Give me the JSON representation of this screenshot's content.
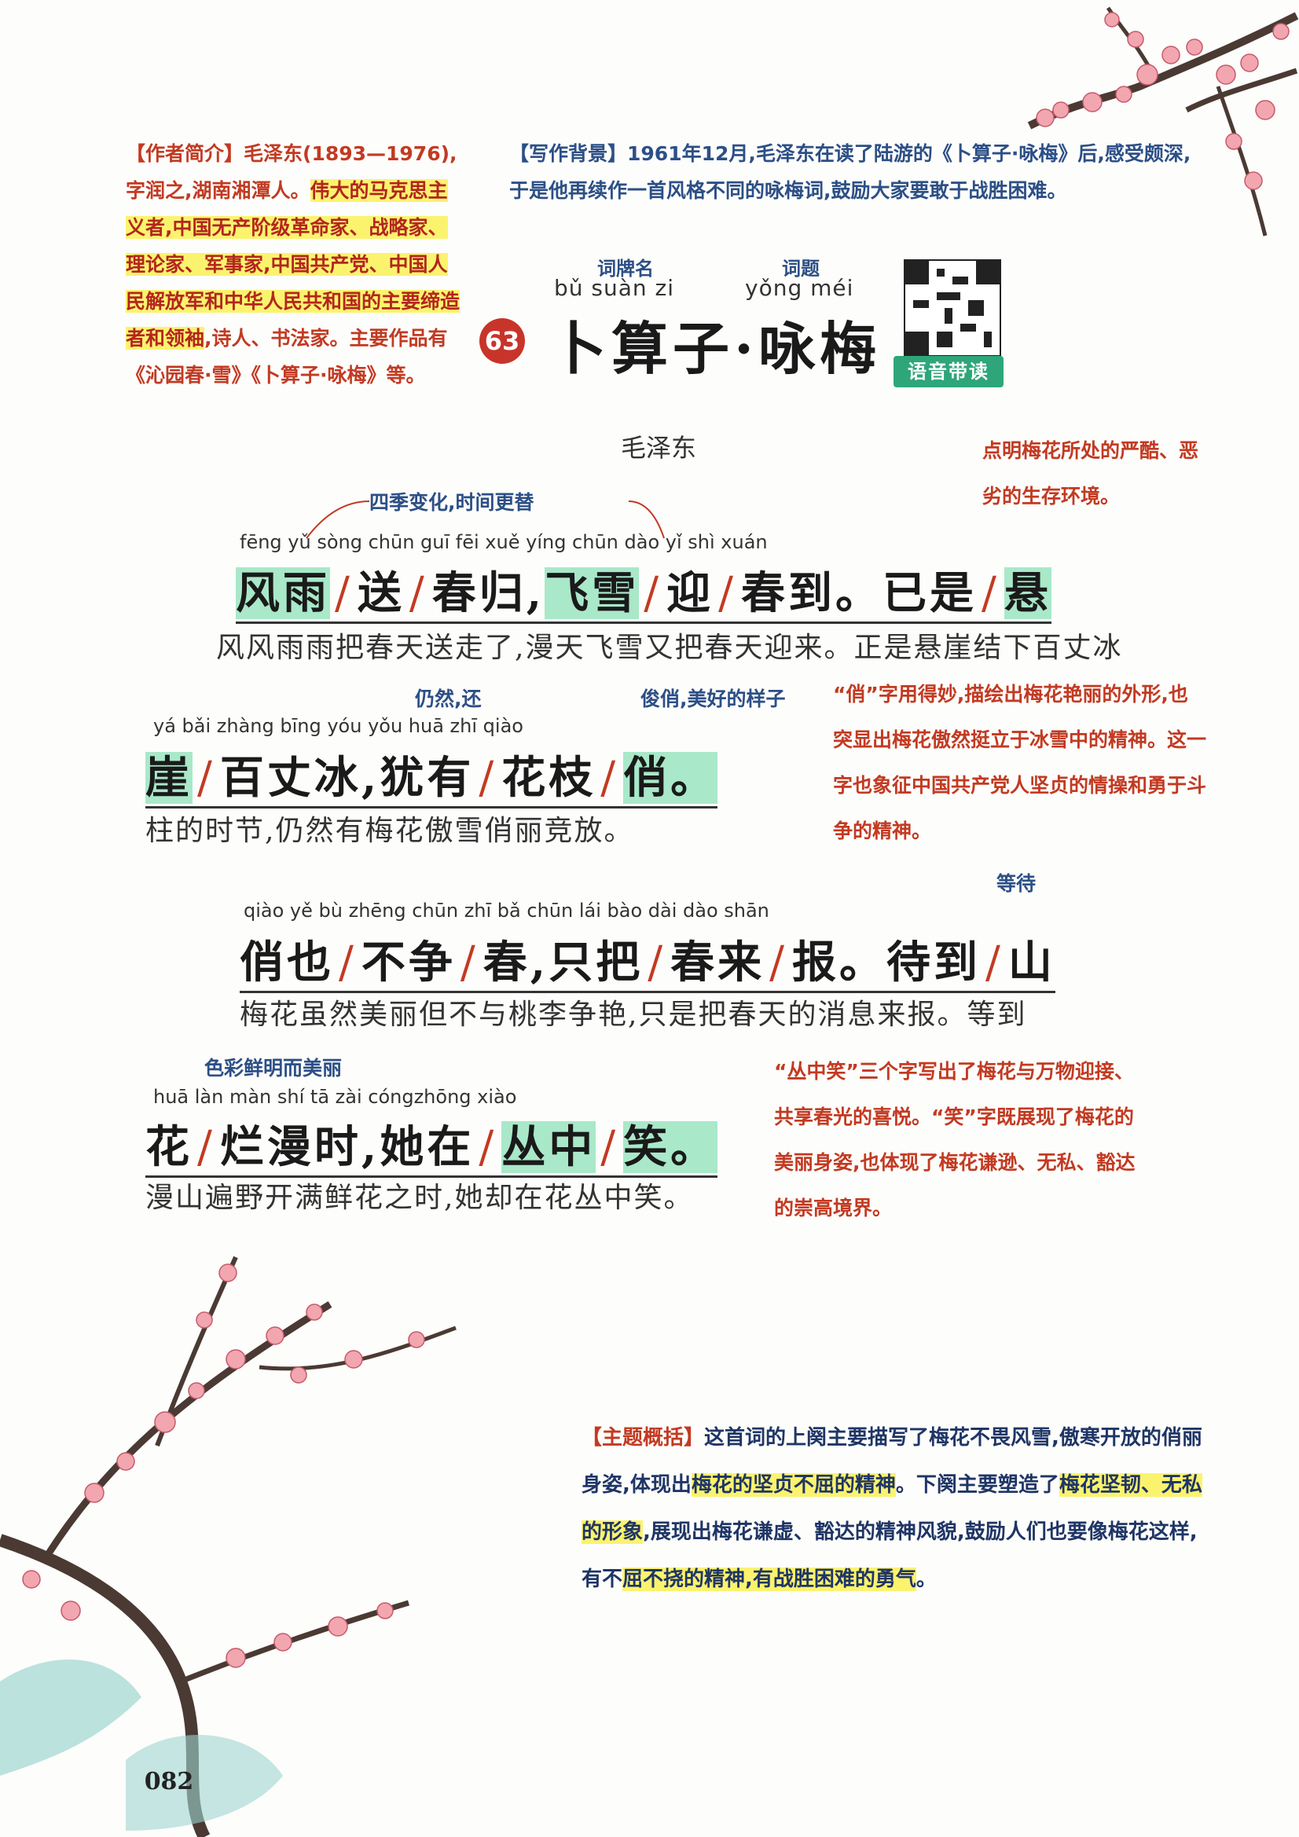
{
  "author_intro": {
    "tag": "【作者简介】",
    "text1": "毛泽东(1893—1976),字润之,湖南湘潭人。",
    "highlight": "伟大的马克思主义者,中国无产阶级革命家、战略家、理论家、军事家,中国共产党、中国人民解放军和中华人民共和国的主要缔造者和领袖",
    "text2": ",诗人、书法家。主要作品有《沁园春·雪》《卜算子·咏梅》等。"
  },
  "background": {
    "tag": "【写作背景】",
    "text": "1961年12月,毛泽东在读了陆游的《卜算子·咏梅》后,感受颇深,于是他再续作一首风格不同的咏梅词,鼓励大家要敢于战胜困难。"
  },
  "title": {
    "label_ci_pai": "词牌名",
    "label_ci_ti": "词题",
    "pinyin_left": "bǔ suàn zi",
    "pinyin_right": "yǒng méi",
    "number": "63",
    "text": "卜算子·咏梅",
    "audio_label": "语音带读"
  },
  "poet": "毛泽东",
  "notes": {
    "n1": "四季变化,时间更替",
    "n2": "点明梅花所处的严酷、恶劣的生存环境。",
    "n3": "仍然,还",
    "n4": "俊俏,美好的样子",
    "n5": "“俏”字用得妙,描绘出梅花艳丽的外形,也突显出梅花傲然挺立于冰雪中的精神。这一字也象征中国共产党人坚贞的情操和勇于斗争的精神。",
    "n6": "等待",
    "n7": "色彩鲜明而美丽",
    "n8": "“丛中笑”三个字写出了梅花与万物迎接、共享春光的喜悦。“笑”字既展现了梅花的美丽身姿,也体现了梅花谦逊、无私、豁达的崇高境界。"
  },
  "lines": [
    {
      "pinyin": "fēng  yǔ        sòng   chūn  guī          fēi   xuě        yíng     chūn  dào              yǐ    shì     xuán",
      "text": [
        "风雨",
        "送",
        "春归,",
        "飞雪",
        "迎",
        "春到。",
        "已是",
        "悬"
      ],
      "translation": "风风雨雨把春天送走了,漫天飞雪又把春天迎来。正是悬崖结下百丈冰"
    },
    {
      "pinyin": "yá        bǎi zhàng bīng       yóu  yǒu        huā  zhī        qiào",
      "text": [
        "崖",
        "百丈冰,",
        "犹有",
        "花枝",
        "俏。"
      ],
      "translation": "柱的时节,仍然有梅花傲雪俏丽竞放。"
    },
    {
      "pinyin": "qiào  yě          bù zhēng      chūn          zhī   bǎ          chūn  lái         bào            dài   dào          shān",
      "text": [
        "俏也",
        "不争",
        "春,",
        "只把",
        "春来",
        "报。",
        "待到",
        "山"
      ],
      "translation": "梅花虽然美丽但不与桃李争艳,只是把春天的消息来报。等到"
    },
    {
      "pinyin": "huā      làn màn  shí          tā   zài          cóngzhōng    xiào",
      "text": [
        "花",
        "烂漫时,",
        "她在",
        "丛中",
        "笑。"
      ],
      "translation": "漫山遍野开满鲜花之时,她却在花丛中笑。"
    }
  ],
  "theme": {
    "tag": "【主题概括】",
    "t1": "这首词的上阕主要描写了梅花不畏风雪,傲寒开放的俏丽身姿,体现出",
    "h1": "梅花的坚贞不屈的精神",
    "t2": "。下阕主要塑造了",
    "h2": "梅花坚韧、无私的形象",
    "t3": ",展现出梅花谦虚、豁达的精神风貌,鼓励人们也要像梅花这样,有不",
    "h3": "屈不挠的精神,有战胜困难的勇气",
    "t4": "。"
  },
  "page_number": "082",
  "colors": {
    "blue": "#2c4f86",
    "red": "#c23a22",
    "highlight": "#fbf36e",
    "green": "#a9e8c9"
  }
}
